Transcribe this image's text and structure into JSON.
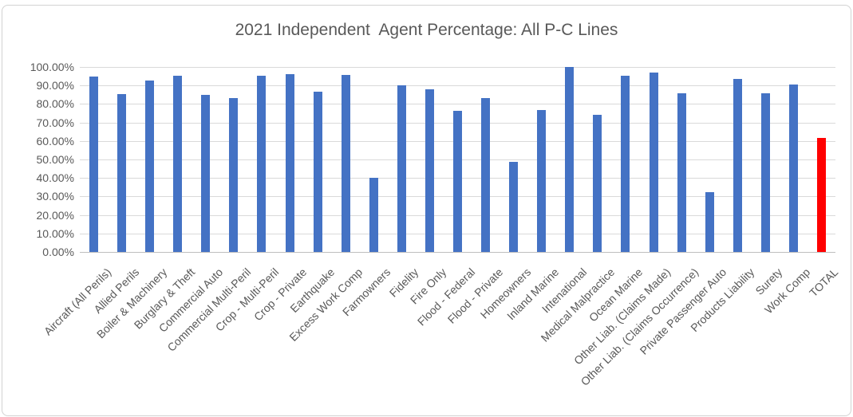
{
  "chart_data": {
    "type": "bar",
    "title": "2021 Independent  Agent Percentage: All P-C Lines",
    "xlabel": "",
    "ylabel": "",
    "ylim": [
      0,
      100
    ],
    "grid": true,
    "legend": false,
    "y_tick_labels": [
      "100.00%",
      "90.00%",
      "80.00%",
      "70.00%",
      "60.00%",
      "50.00%",
      "40.00%",
      "30.00%",
      "20.00%",
      "10.00%",
      "0.00%"
    ],
    "categories": [
      "Aircraft (All Perils)",
      "Allied Perils",
      "Boiler & Machinery",
      "Burglary & Theft",
      "Commercial Auto",
      "Commercial Multi-Peril",
      "Crop - Multi-Peril",
      "Crop - Private",
      "Earthquake",
      "Excess Work Comp",
      "Farmowners",
      "Fidelity",
      "Fire Only",
      "Flood - Federal",
      "Flood - Private",
      "Homeowners",
      "Inland Marine",
      "Intenational",
      "Medical Malpractice",
      "Ocean Marine",
      "Other Liab. (Claims Made)",
      "Other Liab. (Claims Occurrence)",
      "Private Passenger Auto",
      "Products Liability",
      "Surety",
      "Work Comp",
      "TOTAL"
    ],
    "values": [
      95.0,
      85.5,
      92.6,
      95.4,
      84.7,
      83.3,
      95.1,
      96.0,
      86.7,
      95.8,
      40.1,
      90.3,
      88.1,
      76.4,
      83.4,
      48.6,
      76.8,
      100.0,
      74.1,
      95.1,
      96.9,
      85.7,
      32.3,
      93.5,
      85.6,
      90.4,
      61.5
    ],
    "highlight_category": "TOTAL",
    "colors": {
      "bar": "#4472C4",
      "highlight_bar": "#FF0000",
      "gridline": "#D9D9D9",
      "axis_line": "#BFBFBF",
      "text": "#595959",
      "frame_border": "#D2D2D2",
      "background": "#FFFFFF"
    }
  }
}
